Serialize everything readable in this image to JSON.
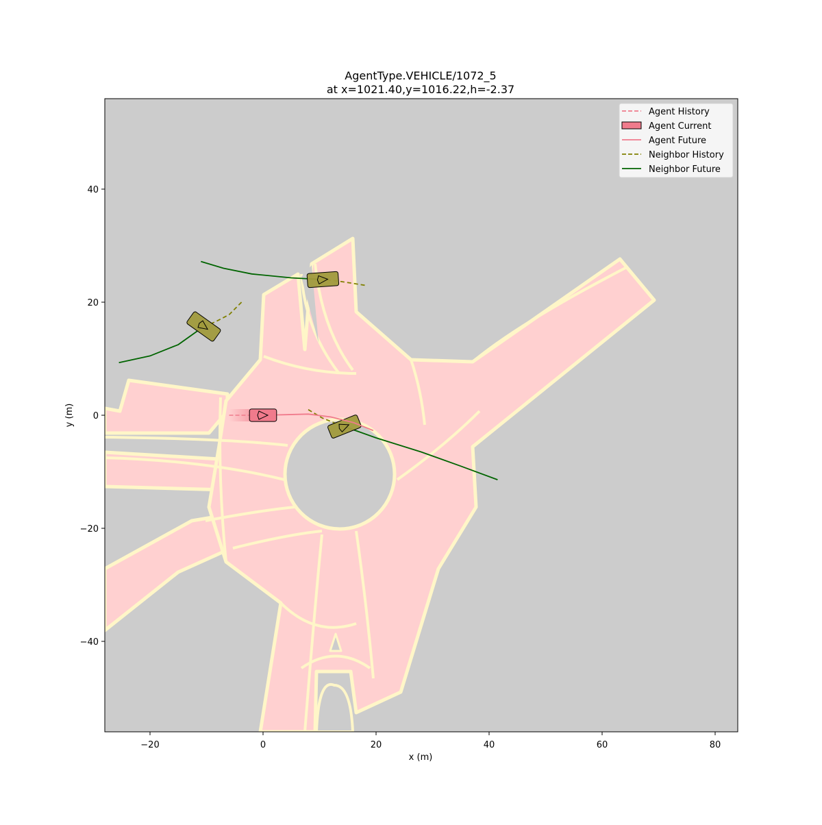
{
  "chart_data": {
    "type": "scatter",
    "title": "AgentType.VEHICLE/1072_5",
    "subtitle": "at x=1021.40,y=1016.22,h=-2.37",
    "xlabel": "x (m)",
    "ylabel": "y (m)",
    "xlim": [
      -28,
      84
    ],
    "ylim": [
      56,
      -56
    ],
    "y_inverted": true,
    "grid": false,
    "x_ticks": [
      -20,
      0,
      20,
      40,
      60,
      80
    ],
    "x_tick_labels": [
      "−20",
      "0",
      "20",
      "40",
      "60",
      "80"
    ],
    "y_ticks": [
      -40,
      -20,
      0,
      20,
      40
    ],
    "y_tick_labels": [
      "−40",
      "−20",
      "0",
      "20",
      "40"
    ],
    "legend": {
      "placement": "top-right",
      "entries": [
        {
          "label": "Agent History",
          "style": "dashed",
          "color": "#f07b8c"
        },
        {
          "label": "Agent Current",
          "style": "box",
          "color": "#f07b8c"
        },
        {
          "label": "Agent Future",
          "style": "solid",
          "color": "#f07b8c"
        },
        {
          "label": "Neighbor History",
          "style": "dashed",
          "color": "#808000"
        },
        {
          "label": "Neighbor Future",
          "style": "solid",
          "color": "#006400"
        }
      ]
    },
    "colors": {
      "background": "#cccccc",
      "drivable": "#ffd0d0",
      "lane_line": "#fff6c8",
      "agent": "#f07b8c",
      "neighbor_fill": "#a09a3c",
      "neighbor_history": "#808000",
      "neighbor_future": "#006400"
    },
    "agent": {
      "x": 0,
      "y": 0,
      "heading": 0,
      "length": 4.8,
      "width": 2.2,
      "history": [
        [
          -6,
          0
        ],
        [
          -4,
          0
        ],
        [
          -2,
          0
        ],
        [
          0,
          0
        ]
      ],
      "future": [
        [
          0,
          0
        ],
        [
          4,
          0.1
        ],
        [
          8,
          0.2
        ],
        [
          12,
          -0.3
        ],
        [
          16,
          -1.3
        ],
        [
          19.5,
          -2.7
        ]
      ]
    },
    "neighbors": [
      {
        "x": 14.4,
        "y": -2.0,
        "heading": -0.38,
        "length": 5.6,
        "width": 2.4,
        "history": [
          [
            8,
            1
          ],
          [
            10.5,
            -0.5
          ],
          [
            12.5,
            -1.3
          ],
          [
            14.4,
            -2.0
          ]
        ],
        "future": [
          [
            14.4,
            -2.0
          ],
          [
            20,
            -4
          ],
          [
            28,
            -6.5
          ],
          [
            35,
            -9
          ],
          [
            41.5,
            -11.4
          ]
        ]
      },
      {
        "x": -10.5,
        "y": 15.7,
        "heading": 0.62,
        "length": 5.8,
        "width": 2.6,
        "history": [
          [
            -3.8,
            20.0
          ],
          [
            -6,
            17.8
          ],
          [
            -8.5,
            16.5
          ],
          [
            -10.5,
            15.7
          ]
        ],
        "future": [
          [
            -10.5,
            15.7
          ],
          [
            -15,
            12.5
          ],
          [
            -20,
            10.5
          ],
          [
            -25.5,
            9.3
          ]
        ]
      },
      {
        "x": 10.6,
        "y": 24.0,
        "heading": -0.07,
        "length": 5.5,
        "width": 2.5,
        "history": [
          [
            18,
            23.0
          ],
          [
            15.5,
            23.4
          ],
          [
            12.8,
            23.8
          ],
          [
            10.6,
            24.0
          ]
        ],
        "future": [
          [
            10.6,
            24.0
          ],
          [
            5,
            24.3
          ],
          [
            -2,
            25.0
          ],
          [
            -7,
            26.0
          ],
          [
            -11,
            27.2
          ]
        ]
      }
    ]
  }
}
